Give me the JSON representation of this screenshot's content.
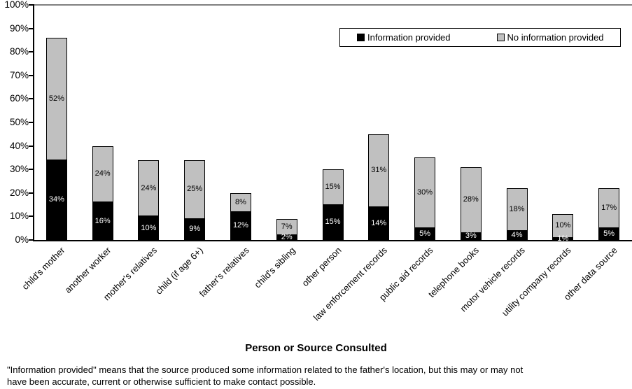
{
  "chart_data": {
    "type": "bar",
    "stacked": true,
    "title": "",
    "xlabel": "Person or Source Consulted",
    "ylabel": "",
    "ylim": [
      0,
      100
    ],
    "grid": false,
    "legend_position": "top-right-inside",
    "categories": [
      "child's mother",
      "another worker",
      "mother's relatives",
      "child (if age 6+)",
      "father's relatives",
      "child's sibling",
      "other person",
      "law enforcement records",
      "public aid records",
      "telephone books",
      "motor vehicle records",
      "utility company records",
      "other data source"
    ],
    "series": [
      {
        "name": "Information provided",
        "color": "#000000",
        "label_color": "#ffffff",
        "values": [
          34,
          16,
          10,
          9,
          12,
          2,
          15,
          14,
          5,
          3,
          4,
          1,
          5
        ]
      },
      {
        "name": "No information provided",
        "color": "#c0c0c0",
        "label_color": "#000000",
        "values": [
          52,
          24,
          24,
          25,
          8,
          7,
          15,
          31,
          30,
          28,
          18,
          10,
          17
        ]
      }
    ],
    "data_label_suffix": "%",
    "yticks": [
      {
        "v": 0,
        "label": "0%"
      },
      {
        "v": 10,
        "label": "10%"
      },
      {
        "v": 20,
        "label": "20%"
      },
      {
        "v": 30,
        "label": "30%"
      },
      {
        "v": 40,
        "label": "40%"
      },
      {
        "v": 50,
        "label": "50%"
      },
      {
        "v": 60,
        "label": "60%"
      },
      {
        "v": 70,
        "label": "70%"
      },
      {
        "v": 80,
        "label": "80%"
      },
      {
        "v": 90,
        "label": "90%"
      },
      {
        "v": 100,
        "label": "100%"
      }
    ]
  },
  "colors": {
    "series_black": "#000000",
    "series_gray": "#c0c0c0",
    "plot_topline": "#808080",
    "axis": "#000000",
    "background": "#ffffff"
  },
  "footnote": {
    "lines": [
      "\"Information provided\" means that the source produced some information related to the father's location, but this may or may not",
      "have been accurate, current or otherwise sufficient to make contact possible."
    ]
  }
}
